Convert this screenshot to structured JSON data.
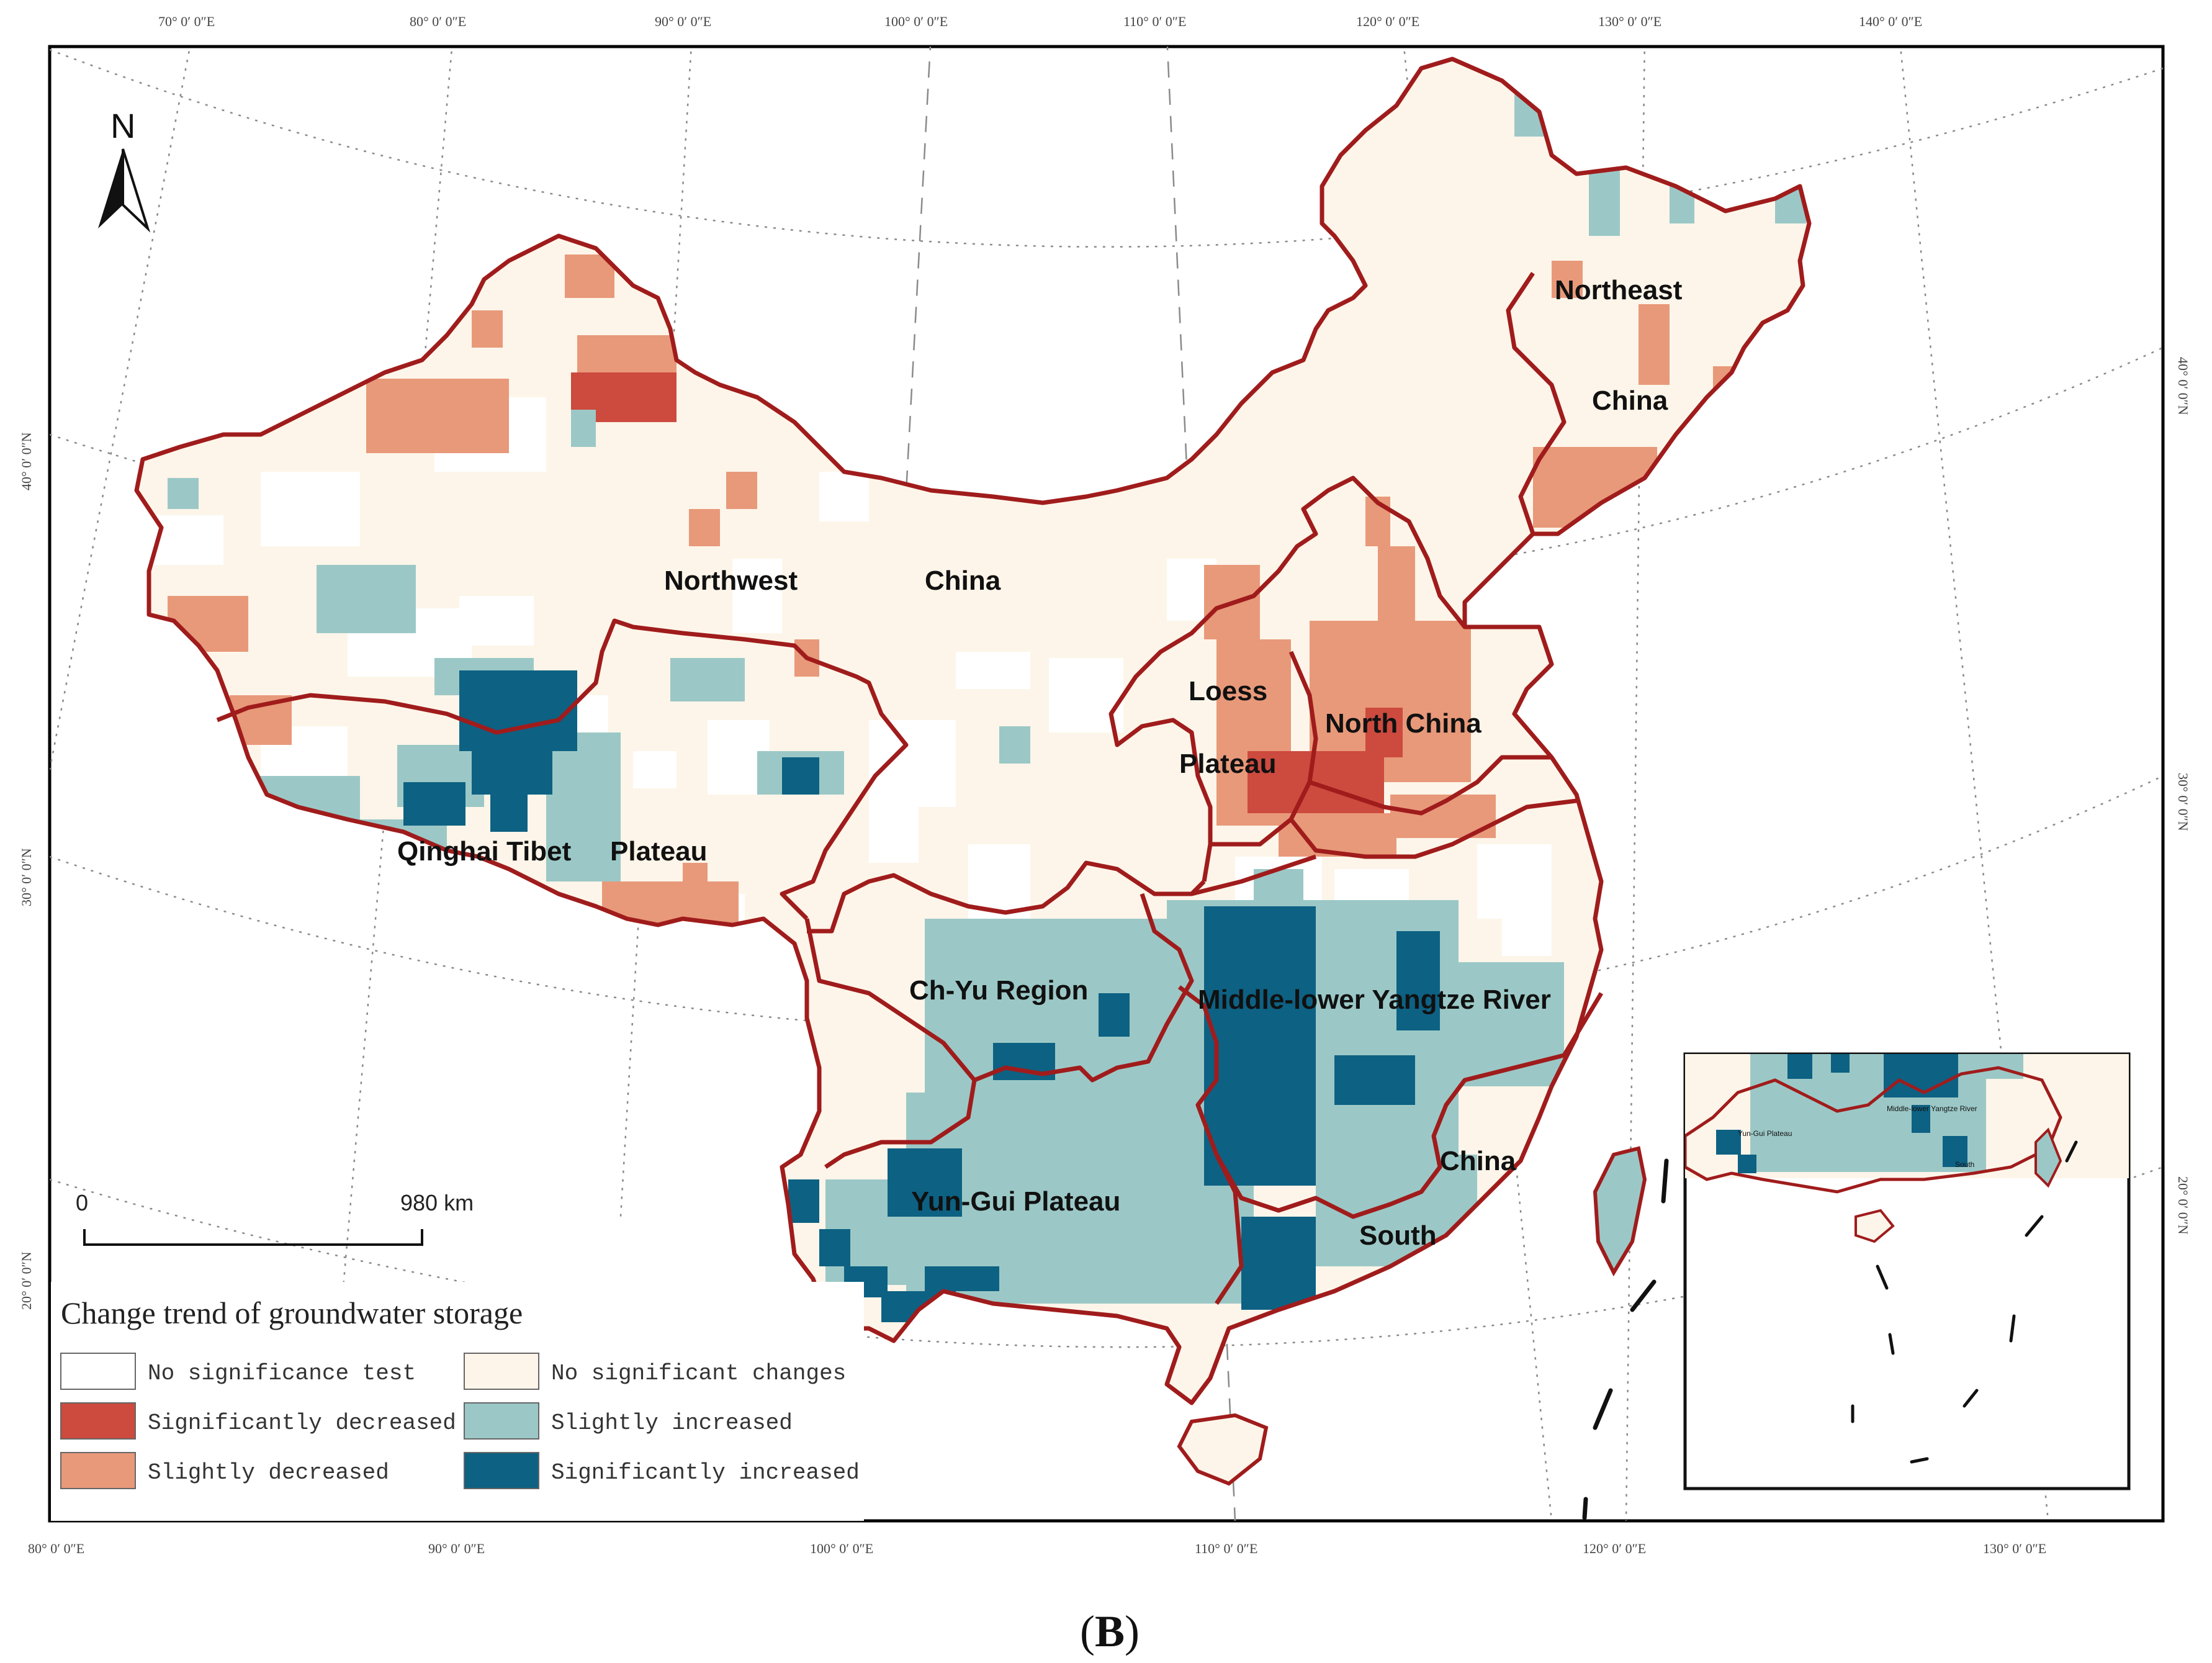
{
  "map": {
    "legend": {
      "title": "Change trend of groundwater storage",
      "items": [
        {
          "label": "No significance test",
          "color": "#ffffff"
        },
        {
          "label": "Significantly decreased",
          "color": "#cd4a3e"
        },
        {
          "label": "Slightly decreased",
          "color": "#e8997a"
        },
        {
          "label": "No significant changes",
          "color": "#fdf5e9"
        },
        {
          "label": "Slightly increased",
          "color": "#9bc8c6"
        },
        {
          "label": "Significantly increased",
          "color": "#0d6183"
        }
      ]
    },
    "regions": [
      {
        "name": "Northwest",
        "id": "nw1"
      },
      {
        "name": "China",
        "id": "nw2"
      },
      {
        "name": "Northeast",
        "id": "ne1"
      },
      {
        "name": "China",
        "id": "ne2"
      },
      {
        "name": "Loess",
        "id": "lp1"
      },
      {
        "name": "Plateau",
        "id": "lp2"
      },
      {
        "name": "North China",
        "id": "nc"
      },
      {
        "name": "Qinghai Tibet",
        "id": "qt1"
      },
      {
        "name": "Plateau",
        "id": "qt2"
      },
      {
        "name": "Ch-Yu Region",
        "id": "cy"
      },
      {
        "name": "Middle-lower Yangtze River",
        "id": "my"
      },
      {
        "name": "Yun-Gui Plateau",
        "id": "yg"
      },
      {
        "name": "China",
        "id": "sc1"
      },
      {
        "name": "South",
        "id": "sc2"
      }
    ],
    "north_label": "N",
    "scale": {
      "zero": "0",
      "distance": "980 km"
    },
    "top_ticks": [
      "70° 0′ 0″E",
      "80° 0′ 0″E",
      "90° 0′ 0″E",
      "100° 0′ 0″E",
      "110° 0′ 0″E",
      "120° 0′ 0″E",
      "130° 0′ 0″E",
      "140° 0′ 0″E"
    ],
    "bottom_ticks": [
      "80° 0′ 0″E",
      "90° 0′ 0″E",
      "100° 0′ 0″E",
      "110° 0′ 0″E",
      "120° 0′ 0″E",
      "130° 0′ 0″E"
    ],
    "left_ticks": [
      "40° 0′ 0″N",
      "30° 0′ 0″N",
      "20° 0′ 0″N"
    ],
    "right_ticks": [
      "40° 0′ 0″N",
      "30° 0′ 0″N",
      "20° 0′ 0″N"
    ],
    "inset_labels": [
      "Yun-Gui Plateau",
      "Middle-lower Yangtze River",
      "South"
    ],
    "caption_open": "(",
    "caption_letter": "B",
    "caption_close": ")"
  }
}
